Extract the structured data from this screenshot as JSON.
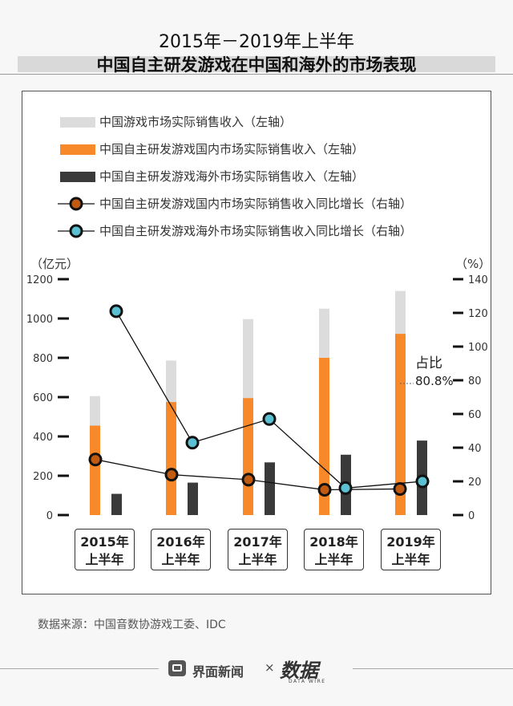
{
  "header": {
    "title_line1": "2015年－2019年上半年",
    "title_line2": "中国自主研发游戏在中国和海外的市场表现"
  },
  "colors": {
    "total": "#dcdcdc",
    "domestic": "#f7892a",
    "overseas": "#3a3a3a",
    "domestic_marker": "#c25b12",
    "overseas_marker": "#5bc0d1"
  },
  "chart_data": {
    "type": "bar",
    "categories": [
      "2015年上半年",
      "2016年上半年",
      "2017年上半年",
      "2018年上半年",
      "2019年上半年"
    ],
    "category_lines": [
      [
        "2015年",
        "上半年"
      ],
      [
        "2016年",
        "上半年"
      ],
      [
        "2017年",
        "上半年"
      ],
      [
        "2018年",
        "上半年"
      ],
      [
        "2019年",
        "上半年"
      ]
    ],
    "series": [
      {
        "name": "中国游戏市场实际销售收入（左轴）",
        "type": "bar",
        "axis": "left",
        "values": [
          605,
          786,
          997,
          1050,
          1140
        ]
      },
      {
        "name": "中国自主研发游戏国内市场实际销售收入（左轴）",
        "type": "bar",
        "axis": "left",
        "values": [
          455,
          575,
          595,
          800,
          922
        ]
      },
      {
        "name": "中国自主研发游戏海外市场实际销售收入（左轴）",
        "type": "bar",
        "axis": "left",
        "values": [
          108,
          165,
          268,
          307,
          379
        ]
      },
      {
        "name": "中国自主研发游戏国内市场实际销售收入同比增长（右轴）",
        "type": "line",
        "axis": "right",
        "values": [
          33,
          24,
          21,
          15,
          15.5
        ]
      },
      {
        "name": "中国自主研发游戏海外市场实际销售收入同比增长（右轴）",
        "type": "line",
        "axis": "right",
        "values": [
          121,
          43,
          57,
          16,
          20
        ]
      }
    ],
    "y_left": {
      "label": "（亿元）",
      "ticks": [
        "0",
        "200",
        "400",
        "600",
        "800",
        "1000",
        "1200"
      ],
      "range": [
        0,
        1200
      ]
    },
    "y_right": {
      "label": "（%）",
      "ticks": [
        "0",
        "20",
        "40",
        "60",
        "80",
        "100",
        "120",
        "140"
      ],
      "range": [
        0,
        140
      ]
    },
    "annotation": {
      "line1": "占比",
      "line2": "80.8%"
    },
    "grid": false,
    "legend_position": "top-left"
  },
  "source": "数据来源：中国音数协游戏工委、IDC",
  "footer": {
    "brand": "界面新闻",
    "separator": "×",
    "logo_text": "数据",
    "logo_tagline": "DATA WIRE"
  }
}
